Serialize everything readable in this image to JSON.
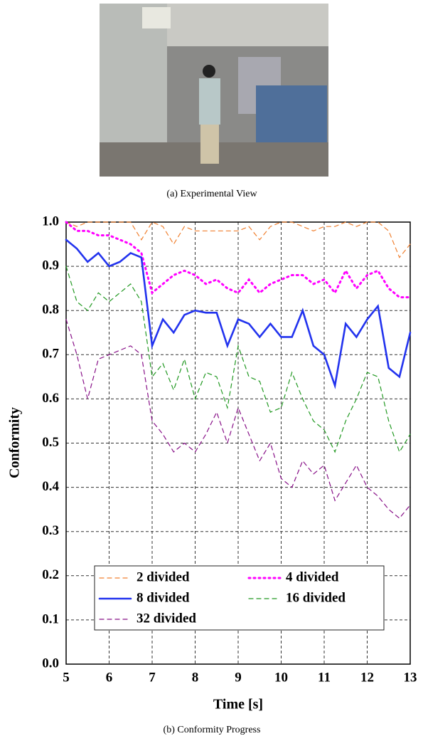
{
  "captions": [
    "(a) Experimental View",
    "(b) Conformity Progress"
  ],
  "chart_data": {
    "type": "line",
    "xlabel": "Time [s]",
    "ylabel": "Conformity",
    "x": [
      5,
      5.25,
      5.5,
      5.75,
      6,
      6.25,
      6.5,
      6.75,
      7,
      7.25,
      7.5,
      7.75,
      8,
      8.25,
      8.5,
      8.75,
      9,
      9.25,
      9.5,
      9.75,
      10,
      10.25,
      10.5,
      10.75,
      11,
      11.25,
      11.5,
      11.75,
      12,
      12.25,
      12.5,
      12.75,
      13
    ],
    "series": [
      {
        "name": "2 divided",
        "color": "#f08030",
        "style": "dashed",
        "values": [
          1.0,
          0.99,
          1.0,
          1.0,
          1.0,
          1.0,
          1.0,
          0.96,
          1.0,
          0.99,
          0.95,
          0.99,
          0.98,
          0.98,
          0.98,
          0.98,
          0.98,
          0.99,
          0.96,
          0.99,
          1.0,
          1.0,
          0.99,
          0.98,
          0.99,
          0.99,
          1.0,
          0.99,
          1.0,
          1.0,
          0.98,
          0.92,
          0.95
        ]
      },
      {
        "name": "4 divided",
        "color": "#ff00ff",
        "style": "dotted",
        "values": [
          1.0,
          0.98,
          0.98,
          0.97,
          0.97,
          0.96,
          0.95,
          0.93,
          0.84,
          0.86,
          0.88,
          0.89,
          0.88,
          0.86,
          0.87,
          0.85,
          0.84,
          0.87,
          0.84,
          0.86,
          0.87,
          0.88,
          0.88,
          0.86,
          0.87,
          0.84,
          0.89,
          0.85,
          0.88,
          0.89,
          0.85,
          0.83,
          0.83
        ]
      },
      {
        "name": "8 divided",
        "color": "#2233ee",
        "style": "solid",
        "values": [
          0.96,
          0.94,
          0.91,
          0.93,
          0.9,
          0.91,
          0.93,
          0.92,
          0.72,
          0.78,
          0.75,
          0.79,
          0.8,
          0.795,
          0.795,
          0.72,
          0.78,
          0.77,
          0.74,
          0.77,
          0.74,
          0.74,
          0.8,
          0.72,
          0.7,
          0.63,
          0.77,
          0.74,
          0.78,
          0.81,
          0.67,
          0.65,
          0.75
        ]
      },
      {
        "name": "16 divided",
        "color": "#229922",
        "style": "dashed",
        "values": [
          0.9,
          0.82,
          0.8,
          0.84,
          0.82,
          0.84,
          0.86,
          0.82,
          0.65,
          0.68,
          0.62,
          0.69,
          0.6,
          0.66,
          0.65,
          0.58,
          0.72,
          0.65,
          0.64,
          0.57,
          0.58,
          0.66,
          0.6,
          0.55,
          0.53,
          0.48,
          0.55,
          0.6,
          0.66,
          0.65,
          0.55,
          0.48,
          0.52
        ]
      },
      {
        "name": "32 divided",
        "color": "#881188",
        "style": "dashed",
        "values": [
          0.78,
          0.7,
          0.6,
          0.69,
          0.7,
          0.71,
          0.72,
          0.7,
          0.55,
          0.52,
          0.48,
          0.5,
          0.48,
          0.52,
          0.57,
          0.5,
          0.58,
          0.52,
          0.46,
          0.5,
          0.42,
          0.4,
          0.46,
          0.43,
          0.45,
          0.37,
          0.41,
          0.45,
          0.4,
          0.38,
          0.35,
          0.33,
          0.36
        ]
      }
    ],
    "xlim": [
      5,
      13
    ],
    "xticks": [
      5,
      6,
      7,
      8,
      9,
      10,
      11,
      12,
      13
    ],
    "ylim": [
      0,
      1
    ],
    "yticks": [
      {
        "value": 0,
        "label": "0.0"
      },
      0.1,
      0.2,
      0.3,
      0.4,
      0.5,
      0.6,
      0.7,
      0.8,
      0.9,
      {
        "value": 1,
        "label": "1.0"
      }
    ],
    "grid": true,
    "legend": "lower center"
  }
}
